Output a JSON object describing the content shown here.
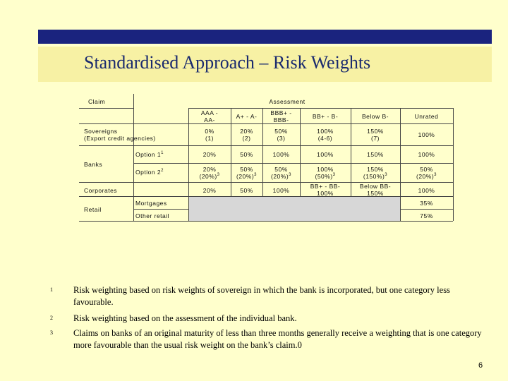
{
  "title": "Standardised Approach – Risk Weights",
  "table": {
    "claim_header": "Claim",
    "assessment_header": "Assessment",
    "columns": [
      {
        "l1": "AAA -",
        "l2": "AA-"
      },
      {
        "l1": "A+ - A-",
        "l2": ""
      },
      {
        "l1": "BBB+ -",
        "l2": "BBB-"
      },
      {
        "l1": "BB+ - B-",
        "l2": ""
      },
      {
        "l1": "Below B-",
        "l2": ""
      },
      {
        "l1": "Unrated",
        "l2": ""
      }
    ],
    "sovereigns": {
      "label1": "Sovereigns",
      "label2": "(Export credit agencies)",
      "cells": [
        {
          "l1": "0%",
          "l2": "(1)"
        },
        {
          "l1": "20%",
          "l2": "(2)"
        },
        {
          "l1": "50%",
          "l2": "(3)"
        },
        {
          "l1": "100%",
          "l2": "(4-6)"
        },
        {
          "l1": "150%",
          "l2": "(7)"
        },
        {
          "l1": "100%",
          "l2": ""
        }
      ]
    },
    "banks": {
      "label": "Banks",
      "option1_label": "Option 1",
      "option1_sup": "1",
      "option1_cells": [
        "20%",
        "50%",
        "100%",
        "100%",
        "150%",
        "100%"
      ],
      "option2_label": "Option 2",
      "option2_sup": "2",
      "option2_cells": [
        {
          "l1": "20%",
          "l2": "(20%)",
          "sup": "3"
        },
        {
          "l1": "50%",
          "l2": "(20%)",
          "sup": "3"
        },
        {
          "l1": "50%",
          "l2": "(20%)",
          "sup": "3"
        },
        {
          "l1": "100%",
          "l2": "(50%)",
          "sup": "3"
        },
        {
          "l1": "150%",
          "l2": "(150%)",
          "sup": "3"
        },
        {
          "l1": "50%",
          "l2": "(20%)",
          "sup": "3"
        }
      ]
    },
    "corporates": {
      "label": "Corporates",
      "cells": [
        {
          "l1": "20%",
          "l2": ""
        },
        {
          "l1": "50%",
          "l2": ""
        },
        {
          "l1": "100%",
          "l2": ""
        },
        {
          "l1": "BB+ - BB-",
          "l2": "100%"
        },
        {
          "l1": "Below BB-",
          "l2": "150%"
        },
        {
          "l1": "100%",
          "l2": ""
        }
      ]
    },
    "retail": {
      "label": "Retail",
      "mortgages_label": "Mortgages",
      "mortgages_value": "35%",
      "other_label": "Other retail",
      "other_value": "75%"
    }
  },
  "footnotes": [
    {
      "num": "1",
      "text": "Risk weighting based on risk weights of sovereign in which the bank is incorporated, but one category less favourable."
    },
    {
      "num": "2",
      "text": "Risk weighting based on the assessment of the individual bank."
    },
    {
      "num": "3",
      "text": "Claims on banks of an original maturity of less than three months generally receive a weighting that is one category more favourable than the usual risk weight on the bank’s claim.0"
    }
  ],
  "page_number": "6"
}
